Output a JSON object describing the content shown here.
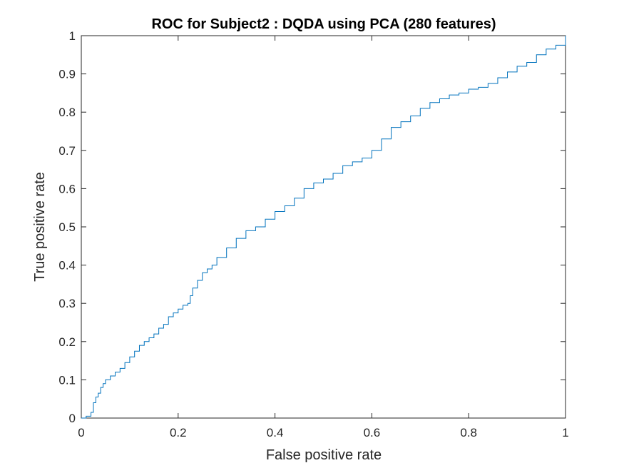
{
  "colors": {
    "line": "#0072BD",
    "axis": "#262626",
    "background": "#ffffff"
  },
  "chart_data": {
    "type": "line",
    "title": "ROC for Subject2 : DQDA using PCA (280 features)",
    "xlabel": "False positive rate",
    "ylabel": "True positive rate",
    "xlim": [
      0,
      1
    ],
    "ylim": [
      0,
      1
    ],
    "xticks": [
      0,
      0.2,
      0.4,
      0.6,
      0.8,
      1
    ],
    "xtick_labels": [
      "0",
      "0.2",
      "0.4",
      "0.6",
      "0.8",
      "1"
    ],
    "yticks": [
      0,
      0.1,
      0.2,
      0.3,
      0.4,
      0.5,
      0.6,
      0.7,
      0.8,
      0.9,
      1
    ],
    "ytick_labels": [
      "0",
      "0.1",
      "0.2",
      "0.3",
      "0.4",
      "0.5",
      "0.6",
      "0.7",
      "0.8",
      "0.9",
      "1"
    ],
    "grid": false,
    "legend": "none",
    "series": [
      {
        "x": [
          0,
          0.01,
          0.02,
          0.025,
          0.03,
          0.035,
          0.04,
          0.045,
          0.05,
          0.06,
          0.07,
          0.08,
          0.09,
          0.1,
          0.11,
          0.12,
          0.13,
          0.14,
          0.15,
          0.16,
          0.17,
          0.18,
          0.19,
          0.2,
          0.21,
          0.22,
          0.225,
          0.23,
          0.24,
          0.25,
          0.26,
          0.27,
          0.28,
          0.3,
          0.32,
          0.34,
          0.36,
          0.38,
          0.4,
          0.42,
          0.44,
          0.46,
          0.48,
          0.5,
          0.52,
          0.54,
          0.56,
          0.58,
          0.6,
          0.62,
          0.64,
          0.66,
          0.68,
          0.7,
          0.72,
          0.74,
          0.76,
          0.78,
          0.8,
          0.82,
          0.84,
          0.86,
          0.88,
          0.9,
          0.92,
          0.94,
          0.96,
          0.98,
          1.0
        ],
        "y": [
          0,
          0.005,
          0.015,
          0.04,
          0.055,
          0.065,
          0.08,
          0.09,
          0.1,
          0.11,
          0.12,
          0.13,
          0.145,
          0.16,
          0.175,
          0.19,
          0.2,
          0.21,
          0.22,
          0.235,
          0.245,
          0.265,
          0.275,
          0.285,
          0.295,
          0.3,
          0.32,
          0.34,
          0.36,
          0.38,
          0.39,
          0.4,
          0.42,
          0.445,
          0.47,
          0.49,
          0.5,
          0.52,
          0.54,
          0.555,
          0.575,
          0.6,
          0.615,
          0.625,
          0.64,
          0.66,
          0.67,
          0.68,
          0.7,
          0.73,
          0.76,
          0.775,
          0.79,
          0.81,
          0.825,
          0.835,
          0.845,
          0.85,
          0.86,
          0.865,
          0.875,
          0.89,
          0.905,
          0.92,
          0.93,
          0.95,
          0.965,
          0.975,
          1.0
        ]
      }
    ]
  }
}
